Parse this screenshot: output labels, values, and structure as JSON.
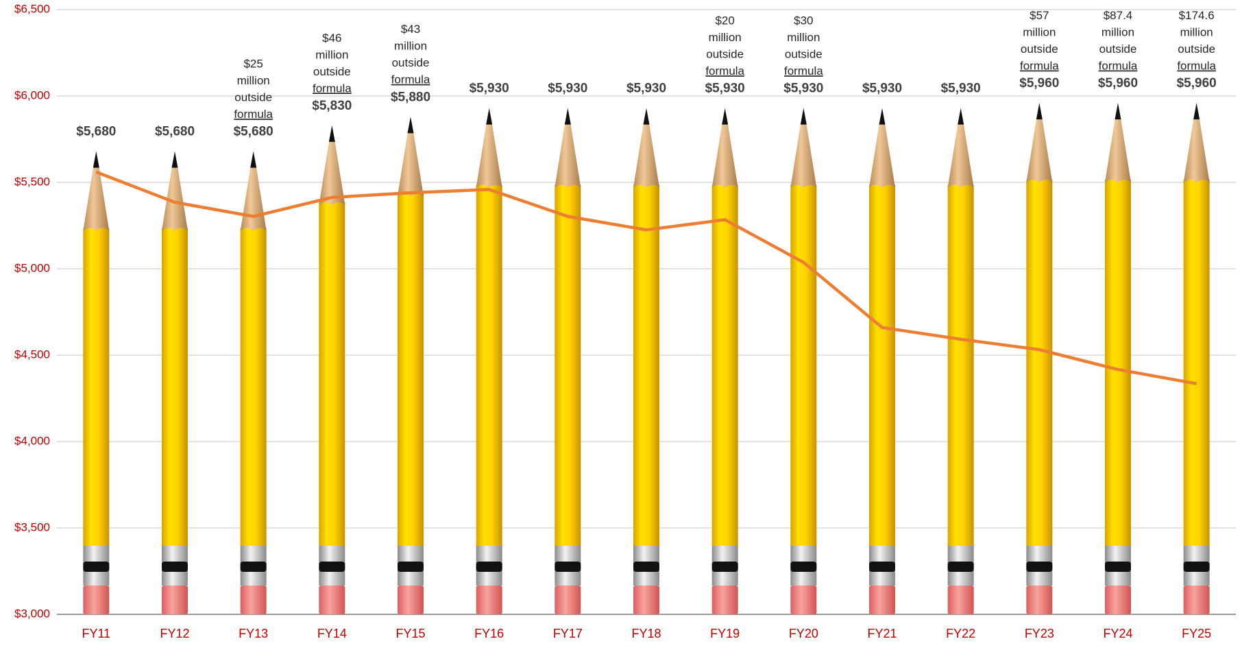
{
  "chart_data": {
    "type": "bar",
    "categories": [
      "FY11",
      "FY12",
      "FY13",
      "FY14",
      "FY15",
      "FY16",
      "FY17",
      "FY18",
      "FY19",
      "FY20",
      "FY21",
      "FY22",
      "FY23",
      "FY24",
      "FY25"
    ],
    "series": [
      {
        "type": "bar",
        "color": "#ffd700",
        "values": [
          5680,
          5680,
          5680,
          5830,
          5880,
          5930,
          5930,
          5930,
          5930,
          5930,
          5930,
          5930,
          5960,
          5960,
          5960
        ],
        "value_labels": [
          "$5,680",
          "$5,680",
          "$5,680",
          "$5,830",
          "$5,880",
          "$5,930",
          "$5,930",
          "$5,930",
          "$5,930",
          "$5,930",
          "$5,930",
          "$5,930",
          "$5,960",
          "$5,960",
          "$5,960"
        ]
      },
      {
        "type": "line",
        "color": "#ed7d31",
        "values": [
          5560,
          5385,
          5303,
          5413,
          5440,
          5459,
          5303,
          5225,
          5284,
          5037,
          4660,
          4592,
          4532,
          4417,
          4335
        ]
      }
    ],
    "annotations": [
      null,
      null,
      [
        "$25",
        "million",
        "outside",
        "formula"
      ],
      [
        "$46",
        "million",
        "outside",
        "formula"
      ],
      [
        "$43",
        "million",
        "outside",
        "formula"
      ],
      null,
      null,
      null,
      [
        "$20",
        "million",
        "outside",
        "formula"
      ],
      [
        "$30",
        "million",
        "outside",
        "formula"
      ],
      null,
      null,
      [
        "$57",
        "million",
        "outside",
        "formula"
      ],
      [
        "$87.4",
        "million",
        "outside",
        "formula"
      ],
      [
        "$174.6",
        "million",
        "outside",
        "formula"
      ]
    ],
    "ylim": [
      3000,
      6500
    ],
    "yticks": [
      {
        "value": 3000,
        "label": "$3,000"
      },
      {
        "value": 3500,
        "label": "$3,500"
      },
      {
        "value": 4000,
        "label": "$4,000"
      },
      {
        "value": 4500,
        "label": "$4,500"
      },
      {
        "value": 5000,
        "label": "$5,000"
      },
      {
        "value": 5500,
        "label": "$5,500"
      },
      {
        "value": 6000,
        "label": "$6,000"
      },
      {
        "value": 6500,
        "label": "$6,500"
      }
    ],
    "grid": true
  }
}
